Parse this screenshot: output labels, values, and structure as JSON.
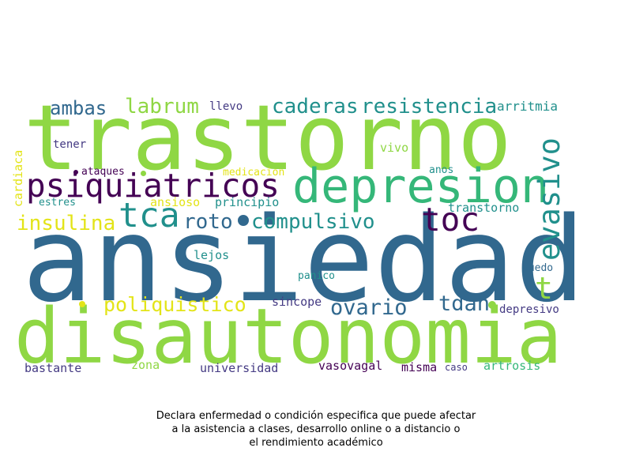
{
  "caption": {
    "lines": [
      "Declara enfermedad o condición especifica que puede afectar",
      "a la asistencia a clases, desarrollo online o a distancio o",
      "el rendimiento académico"
    ]
  },
  "palette": {
    "yellow": "#e3e418",
    "lime": "#8fd744",
    "green": "#35b779",
    "teal": "#21908c",
    "blue": "#31688e",
    "indigo": "#443a83",
    "purple": "#440154"
  },
  "words": [
    {
      "text": "trastorno",
      "color": "#8fd744"
    },
    {
      "text": "ansiedad",
      "color": "#31688e"
    },
    {
      "text": "disautonomia",
      "color": "#8fd744"
    },
    {
      "text": "depresion",
      "color": "#35b779"
    },
    {
      "text": "psiquiatricos",
      "color": "#440154"
    },
    {
      "text": "evasivo",
      "color": "#21908c"
    },
    {
      "text": "tca",
      "color": "#21908c"
    },
    {
      "text": "toc",
      "color": "#440154"
    },
    {
      "text": "compulsivo",
      "color": "#21908c"
    },
    {
      "text": "resistencia",
      "color": "#21908c"
    },
    {
      "text": "caderas",
      "color": "#21908c"
    },
    {
      "text": "labrum",
      "color": "#8fd744"
    },
    {
      "text": "ambas",
      "color": "#31688e"
    },
    {
      "text": "insulina",
      "color": "#e3e418"
    },
    {
      "text": "roto",
      "color": "#31688e"
    },
    {
      "text": "poliquistico",
      "color": "#e3e418"
    },
    {
      "text": "ovario",
      "color": "#31688e"
    },
    {
      "text": "tdah",
      "color": "#31688e"
    },
    {
      "text": "t",
      "color": "#8fd744"
    },
    {
      "text": "arritmia",
      "color": "#21908c"
    },
    {
      "text": "llevo",
      "color": "#443a83"
    },
    {
      "text": "tener",
      "color": "#443a83"
    },
    {
      "text": "vivo",
      "color": "#8fd744"
    },
    {
      "text": "ataques",
      "color": "#440154"
    },
    {
      "text": "medicacion",
      "color": "#e3e418"
    },
    {
      "text": "anos",
      "color": "#21908c"
    },
    {
      "text": "cardiaca",
      "color": "#e3e418"
    },
    {
      "text": "estres",
      "color": "#21908c"
    },
    {
      "text": "ansioso",
      "color": "#e3e418"
    },
    {
      "text": "principio",
      "color": "#21908c"
    },
    {
      "text": "transtorno",
      "color": "#21908c"
    },
    {
      "text": "lejos",
      "color": "#21908c"
    },
    {
      "text": "panico",
      "color": "#21908c"
    },
    {
      "text": "puedo",
      "color": "#31688e"
    },
    {
      "text": "sincope",
      "color": "#443a83"
    },
    {
      "text": "depresivo",
      "color": "#443a83"
    },
    {
      "text": "bastante",
      "color": "#443a83"
    },
    {
      "text": "zona",
      "color": "#8fd744"
    },
    {
      "text": "universidad",
      "color": "#443a83"
    },
    {
      "text": "vasovagal",
      "color": "#440154"
    },
    {
      "text": "misma",
      "color": "#440154"
    },
    {
      "text": "caso",
      "color": "#443a83"
    },
    {
      "text": "artrosis",
      "color": "#35b779"
    }
  ],
  "dots": [
    {
      "color": "#31688e"
    },
    {
      "color": "#8fd744"
    },
    {
      "color": "#e3e418"
    },
    {
      "color": "#8fd744"
    },
    {
      "color": "#440154"
    }
  ]
}
